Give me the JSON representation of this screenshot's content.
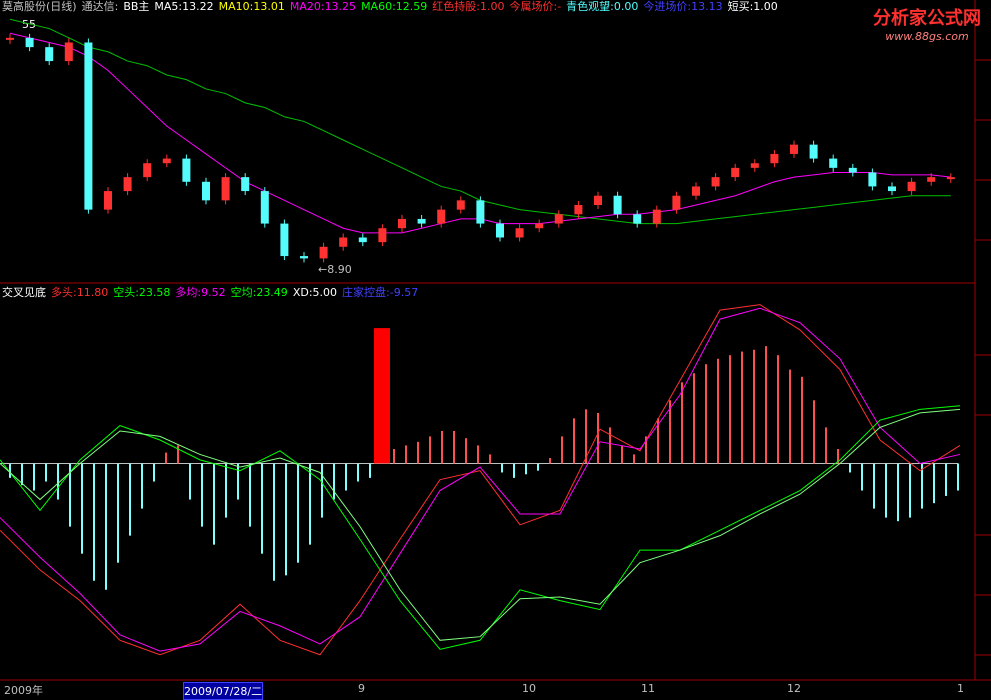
{
  "header": [
    {
      "text": "莫高股份(日线)",
      "color": "#c0c0c0"
    },
    {
      "text": "通达信:",
      "color": "#c0c0c0"
    },
    {
      "text": "BB主",
      "color": "#ffffff"
    },
    {
      "text": "MA5:13.22",
      "color": "#ffffff"
    },
    {
      "text": "MA10:13.01",
      "color": "#ffff00"
    },
    {
      "text": "MA20:13.25",
      "color": "#ff00ff"
    },
    {
      "text": "MA60:12.59",
      "color": "#00ff00"
    },
    {
      "text": "红色持股:1.00",
      "color": "#ff3030"
    },
    {
      "text": "今属场价:-",
      "color": "#ff3030"
    },
    {
      "text": "青色观望:0.00",
      "color": "#54fcfc"
    },
    {
      "text": "今进场价:13.13",
      "color": "#4040ff"
    },
    {
      "text": "短买:1.00",
      "color": "#ffffff"
    }
  ],
  "logo": {
    "title": "分析家公式网",
    "url": "www.88gs.com"
  },
  "price_panel": {
    "ylim": [
      8.7,
      14.3
    ],
    "corner_label": "55",
    "low_label": "←8.90",
    "close": [
      13.7,
      13.5,
      13.2,
      13.6,
      10.0,
      10.4,
      10.7,
      11.0,
      11.1,
      10.6,
      10.2,
      10.7,
      10.4,
      9.7,
      9.0,
      8.95,
      9.2,
      9.4,
      9.3,
      9.6,
      9.8,
      9.7,
      10.0,
      10.2,
      9.7,
      9.4,
      9.6,
      9.7,
      9.9,
      10.1,
      10.3,
      9.9,
      9.7,
      10.0,
      10.3,
      10.5,
      10.7,
      10.9,
      11.0,
      11.2,
      11.4,
      11.1,
      10.9,
      10.8,
      10.5,
      10.4,
      10.6,
      10.7,
      10.7
    ],
    "ma20": [
      13.8,
      13.7,
      13.6,
      13.5,
      13.3,
      13.0,
      12.6,
      12.2,
      11.8,
      11.5,
      11.2,
      10.9,
      10.6,
      10.4,
      10.2,
      10.0,
      9.8,
      9.6,
      9.5,
      9.5,
      9.5,
      9.6,
      9.7,
      9.8,
      9.8,
      9.7,
      9.7,
      9.7,
      9.75,
      9.8,
      9.85,
      9.9,
      9.9,
      9.95,
      10.0,
      10.1,
      10.2,
      10.3,
      10.45,
      10.6,
      10.7,
      10.75,
      10.8,
      10.8,
      10.8,
      10.75,
      10.75,
      10.75,
      10.7
    ],
    "ma60": [
      14.1,
      14.0,
      13.9,
      13.7,
      13.5,
      13.4,
      13.2,
      13.1,
      12.9,
      12.8,
      12.6,
      12.5,
      12.3,
      12.2,
      12.0,
      11.9,
      11.7,
      11.5,
      11.3,
      11.1,
      10.9,
      10.7,
      10.5,
      10.4,
      10.2,
      10.1,
      10.0,
      9.95,
      9.9,
      9.85,
      9.8,
      9.75,
      9.7,
      9.7,
      9.7,
      9.75,
      9.8,
      9.85,
      9.9,
      9.95,
      10.0,
      10.05,
      10.1,
      10.15,
      10.2,
      10.25,
      10.3,
      10.3,
      10.3
    ]
  },
  "indicator_header": [
    {
      "text": "交叉见底",
      "color": "#ffffff"
    },
    {
      "text": "多头:11.80",
      "color": "#ff3030"
    },
    {
      "text": "空头:23.58",
      "color": "#00ff00"
    },
    {
      "text": "多均:9.52",
      "color": "#ff00ff"
    },
    {
      "text": "空均:23.49",
      "color": "#00ff00"
    },
    {
      "text": "XD:5.00",
      "color": "#ffffff"
    },
    {
      "text": "庄家控盘:-9.57",
      "color": "#4040ff"
    }
  ],
  "indicator_panel": {
    "ylim": [
      -120,
      100
    ],
    "histogram": [
      -8,
      -12,
      -15,
      -10,
      -20,
      -35,
      -50,
      -65,
      -70,
      -55,
      -40,
      -25,
      -10,
      6,
      10,
      -20,
      -35,
      -45,
      -30,
      -20,
      -35,
      -50,
      -65,
      -62,
      -55,
      -45,
      -30,
      -20,
      -15,
      -10,
      -8,
      75,
      8,
      10,
      12,
      15,
      18,
      18,
      14,
      10,
      5,
      -5,
      -8,
      -6,
      -4,
      3,
      15,
      25,
      30,
      28,
      20,
      10,
      5,
      15,
      25,
      35,
      45,
      50,
      55,
      58,
      60,
      62,
      63,
      65,
      60,
      52,
      48,
      35,
      20,
      8,
      -5,
      -15,
      -25,
      -30,
      -32,
      -30,
      -25,
      -22,
      -18,
      -15
    ],
    "lines": [
      {
        "color": "#ff3030",
        "values": [
          -37,
          -59,
          -76,
          -98,
          -106,
          -98,
          -78,
          -98,
          -106,
          -76,
          -42,
          -9,
          -4,
          -34,
          -26,
          19,
          7,
          46,
          85,
          88,
          74,
          52,
          13,
          -4,
          10
        ]
      },
      {
        "color": "#ff00ff",
        "values": [
          -30,
          -52,
          -72,
          -95,
          -104,
          -100,
          -82,
          -90,
          -100,
          -85,
          -50,
          -15,
          -2,
          -28,
          -28,
          12,
          8,
          38,
          80,
          86,
          78,
          58,
          20,
          0,
          5
        ]
      },
      {
        "color": "#00ff00",
        "values": [
          2,
          -26,
          2,
          21,
          13,
          2,
          -4,
          7,
          -9,
          -42,
          -76,
          -103,
          -98,
          -70,
          -76,
          -81,
          -48,
          -48,
          -37,
          -26,
          -15,
          2,
          24,
          30,
          32
        ]
      },
      {
        "color": "#80ff80",
        "values": [
          0,
          -20,
          0,
          18,
          15,
          5,
          -2,
          3,
          -5,
          -35,
          -70,
          -98,
          -96,
          -75,
          -74,
          -78,
          -55,
          -48,
          -40,
          -28,
          -17,
          0,
          20,
          28,
          30
        ]
      }
    ]
  },
  "x_axis": {
    "labels": [
      "2009年",
      "2009/07/28/二",
      "9",
      "10",
      "11",
      "12",
      "1"
    ]
  }
}
